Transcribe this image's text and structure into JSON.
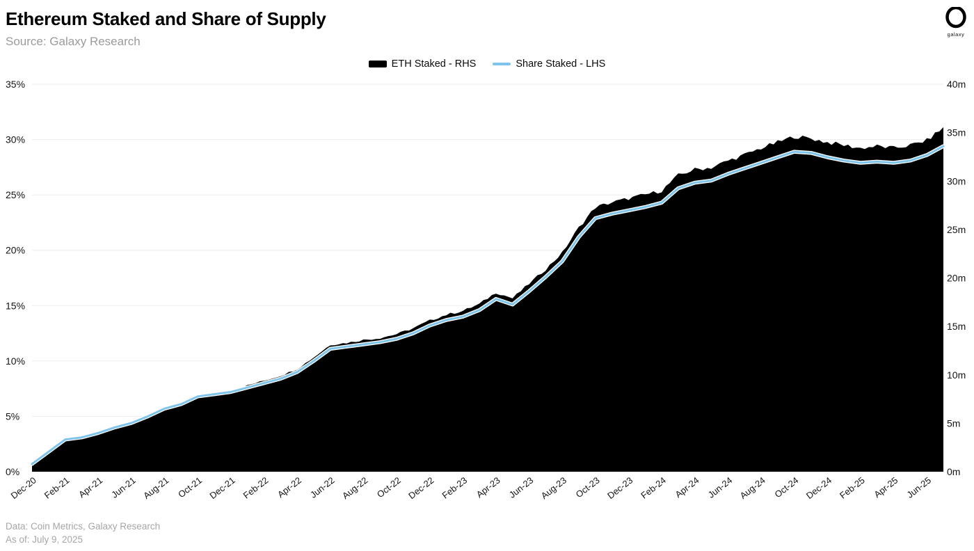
{
  "header": {
    "title": "Ethereum Staked and Share of Supply",
    "source": "Source: Galaxy Research",
    "logo_text": "galaxy"
  },
  "legend": [
    {
      "label": "ETH Staked - RHS",
      "color": "#000000",
      "type": "area"
    },
    {
      "label": "Share Staked - LHS",
      "color": "#7EC3EA",
      "type": "line"
    }
  ],
  "footer": {
    "data_source": "Data: Coin Metrics, Galaxy Research",
    "as_of": "As of: July 9, 2025"
  },
  "chart_data": {
    "type": "area",
    "title": "Ethereum Staked and Share of Supply",
    "grid": "horizontal",
    "x_tick_every": 2,
    "x": [
      "Dec-20",
      "Jan-21",
      "Feb-21",
      "Mar-21",
      "Apr-21",
      "May-21",
      "Jun-21",
      "Jul-21",
      "Aug-21",
      "Sep-21",
      "Oct-21",
      "Nov-21",
      "Dec-21",
      "Jan-22",
      "Feb-22",
      "Mar-22",
      "Apr-22",
      "May-22",
      "Jun-22",
      "Jul-22",
      "Aug-22",
      "Sep-22",
      "Oct-22",
      "Nov-22",
      "Dec-22",
      "Jan-23",
      "Feb-23",
      "Mar-23",
      "Apr-23",
      "May-23",
      "Jun-23",
      "Jul-23",
      "Aug-23",
      "Sep-23",
      "Oct-23",
      "Nov-23",
      "Dec-23",
      "Jan-24",
      "Feb-24",
      "Mar-24",
      "Apr-24",
      "May-24",
      "Jun-24",
      "Jul-24",
      "Aug-24",
      "Sep-24",
      "Oct-24",
      "Nov-24",
      "Dec-24",
      "Jan-25",
      "Feb-25",
      "Mar-25",
      "Apr-25",
      "May-25",
      "Jun-25",
      "Jul-25"
    ],
    "series": [
      {
        "name": "ETH Staked - RHS",
        "axis": "rhs",
        "type": "area",
        "color": "#000000",
        "unit": "million ETH",
        "values": [
          0.9,
          2.1,
          3.3,
          3.6,
          4.0,
          4.6,
          5.1,
          5.8,
          6.6,
          7.1,
          7.9,
          8.1,
          8.4,
          8.9,
          9.4,
          9.9,
          10.6,
          11.8,
          13.1,
          13.3,
          13.6,
          13.8,
          14.2,
          14.8,
          15.6,
          16.2,
          16.6,
          17.3,
          18.5,
          17.9,
          19.4,
          20.9,
          22.6,
          25.2,
          27.3,
          27.8,
          28.2,
          28.6,
          29.0,
          30.6,
          31.2,
          31.4,
          32.1,
          32.7,
          33.4,
          34.0,
          34.6,
          34.4,
          34.0,
          33.7,
          33.4,
          33.6,
          33.4,
          33.7,
          34.2,
          35.5
        ]
      },
      {
        "name": "Share Staked - LHS",
        "axis": "lhs",
        "type": "line",
        "color": "#7EC3EA",
        "unit": "percent of supply",
        "values": [
          0.7,
          1.8,
          2.9,
          3.1,
          3.5,
          4.0,
          4.4,
          5.0,
          5.7,
          6.1,
          6.8,
          7.0,
          7.2,
          7.6,
          8.0,
          8.4,
          9.0,
          10.0,
          11.1,
          11.3,
          11.5,
          11.7,
          12.0,
          12.5,
          13.2,
          13.7,
          14.0,
          14.6,
          15.6,
          15.1,
          16.3,
          17.6,
          19.0,
          21.2,
          22.9,
          23.3,
          23.6,
          23.9,
          24.3,
          25.6,
          26.1,
          26.3,
          26.9,
          27.4,
          27.9,
          28.4,
          28.9,
          28.8,
          28.4,
          28.1,
          27.9,
          28.0,
          27.9,
          28.1,
          28.6,
          29.4
        ]
      }
    ],
    "lhs_axis": {
      "min": 0,
      "max": 35,
      "suffix": "%",
      "ticks": [
        {
          "v": 0,
          "label": "0%"
        },
        {
          "v": 5,
          "label": "5%"
        },
        {
          "v": 10,
          "label": "10%"
        },
        {
          "v": 15,
          "label": "15%"
        },
        {
          "v": 20,
          "label": "20%"
        },
        {
          "v": 25,
          "label": "25%"
        },
        {
          "v": 30,
          "label": "30%"
        },
        {
          "v": 35,
          "label": "35%"
        }
      ]
    },
    "rhs_axis": {
      "min": 0,
      "max": 40,
      "suffix": "m",
      "ticks": [
        {
          "v": 0,
          "label": "0m"
        },
        {
          "v": 5,
          "label": "5m"
        },
        {
          "v": 10,
          "label": "10m"
        },
        {
          "v": 15,
          "label": "15m"
        },
        {
          "v": 20,
          "label": "20m"
        },
        {
          "v": 25,
          "label": "25m"
        },
        {
          "v": 30,
          "label": "30m"
        },
        {
          "v": 35,
          "label": "35m"
        },
        {
          "v": 40,
          "label": "40m"
        }
      ]
    }
  }
}
